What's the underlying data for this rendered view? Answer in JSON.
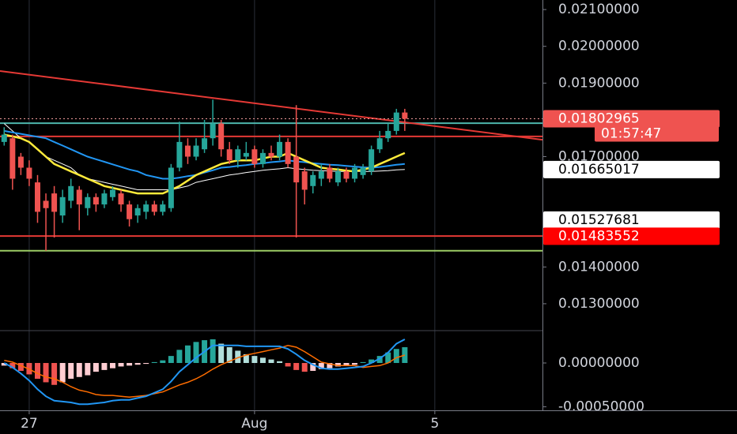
{
  "chart_data": [
    {
      "type": "candlestick",
      "open": [
        0.0174,
        0.0175,
        0.017,
        0.0167,
        0.0163,
        0.0158,
        0.016,
        0.0154,
        0.0158,
        0.0161,
        0.0156,
        0.0159,
        0.0157,
        0.0159,
        0.016,
        0.0157,
        0.0154,
        0.0155,
        0.0157,
        0.0155,
        0.0156,
        0.0167,
        0.0173,
        0.017,
        0.0172,
        0.0175,
        0.0179,
        0.0172,
        0.0169,
        0.017,
        0.0172,
        0.0168,
        0.0171,
        0.017,
        0.0174,
        0.017,
        0.0166,
        0.0162,
        0.0164,
        0.0167,
        0.0163,
        0.0166,
        0.0164,
        0.0165,
        0.0166,
        0.0172,
        0.0175,
        0.0177,
        0.0182
      ],
      "high": [
        0.0178,
        0.0176,
        0.0171,
        0.0169,
        0.0165,
        0.016,
        0.0162,
        0.0161,
        0.0164,
        0.0162,
        0.016,
        0.016,
        0.0161,
        0.0162,
        0.0161,
        0.0158,
        0.0157,
        0.0158,
        0.0158,
        0.0158,
        0.0168,
        0.01795,
        0.0175,
        0.0175,
        0.018,
        0.01855,
        0.018,
        0.0174,
        0.0173,
        0.0174,
        0.0173,
        0.0172,
        0.0173,
        0.0176,
        0.0175,
        0.0184,
        0.0167,
        0.0166,
        0.0168,
        0.0168,
        0.0167,
        0.0167,
        0.0168,
        0.0168,
        0.0173,
        0.0177,
        0.0179,
        0.0183,
        0.0183
      ],
      "low": [
        0.0173,
        0.0161,
        0.0165,
        0.0162,
        0.0152,
        0.01444,
        0.0148,
        0.0152,
        0.0156,
        0.015,
        0.0154,
        0.0155,
        0.0156,
        0.0158,
        0.0155,
        0.0151,
        0.0152,
        0.0153,
        0.0154,
        0.0154,
        0.0155,
        0.0166,
        0.0168,
        0.0169,
        0.0171,
        0.0173,
        0.017,
        0.0168,
        0.0167,
        0.0169,
        0.0167,
        0.0167,
        0.0169,
        0.0169,
        0.0167,
        0.0148,
        0.0157,
        0.016,
        0.0162,
        0.0163,
        0.0162,
        0.0163,
        0.0163,
        0.0164,
        0.0165,
        0.0171,
        0.0174,
        0.0176,
        0.0177
      ],
      "close": [
        0.0176,
        0.0164,
        0.0167,
        0.0164,
        0.0155,
        0.0156,
        0.0155,
        0.0159,
        0.0162,
        0.0157,
        0.0159,
        0.0157,
        0.016,
        0.0161,
        0.0157,
        0.0153,
        0.0156,
        0.0157,
        0.0155,
        0.0157,
        0.0167,
        0.0174,
        0.017,
        0.0173,
        0.0175,
        0.0179,
        0.0172,
        0.0169,
        0.0172,
        0.0171,
        0.0168,
        0.0171,
        0.017,
        0.0174,
        0.0168,
        0.0163,
        0.0161,
        0.0165,
        0.0166,
        0.0164,
        0.0166,
        0.0164,
        0.0167,
        0.0167,
        0.0172,
        0.0175,
        0.0177,
        0.0182,
        0.01802965
      ],
      "up_color": "#26a69a",
      "down_color": "#ef5350",
      "moving_averages": [
        {
          "color": "#ffffff",
          "values": [
            0.0179,
            0.0177,
            0.0175,
            0.0174,
            0.0172,
            0.017,
            0.0169,
            0.0168,
            0.0167,
            0.0165,
            0.0164,
            0.01635,
            0.0163,
            0.01625,
            0.0162,
            0.01615,
            0.0161,
            0.0161,
            0.0161,
            0.0161,
            0.0161,
            0.01615,
            0.0162,
            0.0163,
            0.01635,
            0.0164,
            0.01645,
            0.0165,
            0.01653,
            0.01657,
            0.0166,
            0.01663,
            0.01665,
            0.01667,
            0.0167,
            0.01667,
            0.01665,
            0.01663,
            0.01662,
            0.01661,
            0.0166,
            0.0166,
            0.0166,
            0.0166,
            0.0166,
            0.01661,
            0.01662,
            0.01664,
            0.01665
          ]
        },
        {
          "color": "#2196f3",
          "values": [
            0.0177,
            0.01766,
            0.01762,
            0.01758,
            0.01754,
            0.0175,
            0.0174,
            0.0173,
            0.0172,
            0.0171,
            0.017,
            0.01693,
            0.01686,
            0.01679,
            0.01672,
            0.01665,
            0.0166,
            0.0165,
            0.01645,
            0.0164,
            0.0164,
            0.01643,
            0.01647,
            0.0165,
            0.01657,
            0.01663,
            0.0167,
            0.01672,
            0.01675,
            0.01677,
            0.0168,
            0.01682,
            0.01685,
            0.01687,
            0.0169,
            0.01687,
            0.01685,
            0.01682,
            0.0168,
            0.01678,
            0.01677,
            0.01675,
            0.01673,
            0.01671,
            0.0167,
            0.01672,
            0.01675,
            0.01678,
            0.0168
          ]
        },
        {
          "color": "#ffeb3b",
          "values": [
            0.0176,
            0.01755,
            0.0175,
            0.0174,
            0.0172,
            0.017,
            0.0168,
            0.0167,
            0.0166,
            0.0165,
            0.0164,
            0.0163,
            0.0162,
            0.01615,
            0.0161,
            0.01605,
            0.016,
            0.016,
            0.016,
            0.016,
            0.0161,
            0.0162,
            0.01635,
            0.0165,
            0.0166,
            0.0167,
            0.0168,
            0.01685,
            0.0169,
            0.0169,
            0.0169,
            0.01695,
            0.017,
            0.017,
            0.0171,
            0.017,
            0.0169,
            0.0168,
            0.0167,
            0.01667,
            0.01665,
            0.01662,
            0.0166,
            0.01665,
            0.0167,
            0.0168,
            0.0169,
            0.017,
            0.0171
          ]
        }
      ],
      "levels": [
        {
          "value": 0.01791,
          "color": "#4db6ac"
        },
        {
          "value": 0.01755,
          "color": "#e53935"
        },
        {
          "value": 0.01484,
          "color": "#e53935"
        },
        {
          "value": 0.01444,
          "color": "#9ccc65"
        }
      ],
      "trendline": {
        "color": "#e53935",
        "values": [
          0.01933,
          0.01746
        ]
      },
      "last_price_line": {
        "value": 0.01802965,
        "color": "#ef9a9a"
      },
      "price_labels": [
        {
          "value": 0.01802965,
          "color": "#ef5350",
          "countdown": "01:57:47"
        },
        {
          "value": 0.01665017,
          "color": "#ffffff"
        },
        {
          "value": 0.01527681,
          "color": "#ffffff"
        },
        {
          "value": 0.01483552,
          "color": "#ff0000"
        }
      ],
      "xlim": [
        -0.5,
        64.5
      ],
      "xticks": [
        {
          "value": 3,
          "label": "27"
        },
        {
          "value": 30,
          "label": "Aug"
        },
        {
          "value": 51.6,
          "label": "5"
        }
      ],
      "xgrid": true,
      "ylim": [
        0.01229,
        0.02126
      ],
      "yticks": [
        {
          "value": 0.021,
          "label": "0.02100000"
        },
        {
          "value": 0.02,
          "label": "0.02000000"
        },
        {
          "value": 0.019,
          "label": "0.01900000"
        },
        {
          "value": 0.017,
          "label": "0.01700000"
        },
        {
          "value": 0.014,
          "label": "0.01400000"
        },
        {
          "value": 0.013,
          "label": "0.01300000"
        }
      ]
    },
    {
      "type": "macd",
      "histogram": [
        -3e-05,
        -6e-05,
        -9e-05,
        -0.00013,
        -0.00018,
        -0.00022,
        -0.00025,
        -0.00022,
        -0.00018,
        -0.00016,
        -0.00014,
        -0.0001,
        -8e-05,
        -6e-05,
        -4e-05,
        -3e-05,
        -2e-05,
        -1e-05,
        1e-05,
        3e-05,
        8e-05,
        0.00015,
        0.0002,
        0.00024,
        0.00026,
        0.00027,
        0.00022,
        0.00018,
        0.00014,
        0.0001,
        8e-05,
        6e-05,
        4e-05,
        2e-05,
        -4e-05,
        -8e-05,
        -0.0001,
        -9e-05,
        -7e-05,
        -6e-05,
        -4e-05,
        -3e-05,
        -2e-05,
        1e-05,
        4e-05,
        8e-05,
        0.00012,
        0.00016,
        0.00018
      ],
      "histogram_colors": [
        "#26a69a",
        "#b2dfdb",
        "#ef5350",
        "#ffcdd2"
      ],
      "macd": {
        "color": "#2196f3",
        "values": [
          0.0,
          -5e-05,
          -0.00012,
          -0.0002,
          -0.0003,
          -0.00038,
          -0.00043,
          -0.00044,
          -0.00045,
          -0.00047,
          -0.00047,
          -0.00046,
          -0.00045,
          -0.00043,
          -0.00042,
          -0.00042,
          -0.0004,
          -0.00038,
          -0.00034,
          -0.0003,
          -0.00021,
          -0.0001,
          -2e-05,
          6e-05,
          0.00013,
          0.0002,
          0.0002,
          0.0002,
          0.0002,
          0.00019,
          0.00019,
          0.00019,
          0.00019,
          0.00019,
          0.00016,
          0.0001,
          3e-05,
          -2e-05,
          -6e-05,
          -7e-05,
          -7e-05,
          -6e-05,
          -5e-05,
          -4e-05,
          0.0,
          5e-05,
          0.00012,
          0.00022,
          0.00027
        ]
      },
      "signal": {
        "color": "#ff6d00",
        "values": [
          3e-05,
          1e-05,
          -3e-05,
          -7e-05,
          -0.00012,
          -0.00016,
          -0.00018,
          -0.00022,
          -0.00027,
          -0.00031,
          -0.00033,
          -0.00036,
          -0.00037,
          -0.00037,
          -0.00038,
          -0.00039,
          -0.00038,
          -0.00037,
          -0.00035,
          -0.00033,
          -0.00029,
          -0.00025,
          -0.00022,
          -0.00018,
          -0.00013,
          -7e-05,
          -2e-05,
          2e-05,
          6e-05,
          9e-05,
          0.00011,
          0.00013,
          0.00015,
          0.00017,
          0.0002,
          0.00018,
          0.00013,
          7e-05,
          1e-05,
          -1e-05,
          -3e-05,
          -3e-05,
          -3e-05,
          -5e-05,
          -4e-05,
          -3e-05,
          0.0,
          6e-05,
          9e-05
        ]
      },
      "ylim": [
        -0.00054,
        0.00036
      ],
      "yticks": [
        {
          "value": 0,
          "label": "0.00000000"
        },
        {
          "value": -0.0005,
          "label": "-0.00050000"
        }
      ]
    }
  ]
}
